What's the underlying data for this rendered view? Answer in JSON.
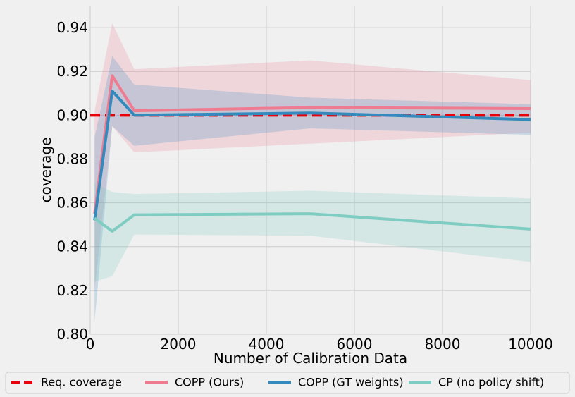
{
  "chart_data": {
    "type": "line",
    "xlabel": "Number of Calibration Data",
    "ylabel": "coverage",
    "xlim": [
      0,
      10000
    ],
    "ylim": [
      0.8,
      0.95
    ],
    "xticks": [
      0,
      2000,
      4000,
      6000,
      8000,
      10000
    ],
    "xtick_labels": [
      "0",
      "2000",
      "4000",
      "6000",
      "8000",
      "10000"
    ],
    "yticks": [
      0.8,
      0.82,
      0.84,
      0.86,
      0.88,
      0.9,
      0.92,
      0.94
    ],
    "ytick_labels": [
      "0.80",
      "0.82",
      "0.84",
      "0.86",
      "0.88",
      "0.90",
      "0.92",
      "0.94"
    ],
    "grid": true,
    "legend_position": "bottom",
    "x": [
      100,
      500,
      1000,
      5000,
      10000
    ],
    "reference": {
      "name": "Req. coverage",
      "value": 0.9,
      "color": "#e8000b",
      "style": "dashed"
    },
    "series": [
      {
        "name": "COPP (Ours)",
        "color": "#ef7b91",
        "band_opacity": 0.22,
        "values": [
          0.855,
          0.918,
          0.902,
          0.9035,
          0.903
        ],
        "lower": [
          0.82,
          0.895,
          0.883,
          0.887,
          0.892
        ],
        "upper": [
          0.902,
          0.942,
          0.921,
          0.925,
          0.916
        ]
      },
      {
        "name": "COPP (GT weights)",
        "color": "#348abd",
        "band_opacity": 0.22,
        "values": [
          0.852,
          0.911,
          0.9,
          0.901,
          0.898
        ],
        "lower": [
          0.806,
          0.895,
          0.886,
          0.894,
          0.891
        ],
        "upper": [
          0.89,
          0.927,
          0.914,
          0.908,
          0.905
        ]
      },
      {
        "name": "CP (no policy shift)",
        "color": "#7fcdc2",
        "band_opacity": 0.25,
        "values": [
          0.853,
          0.847,
          0.8545,
          0.855,
          0.848
        ],
        "lower": [
          0.824,
          0.8265,
          0.8455,
          0.845,
          0.833
        ],
        "upper": [
          0.869,
          0.865,
          0.864,
          0.8655,
          0.862
        ]
      }
    ]
  }
}
